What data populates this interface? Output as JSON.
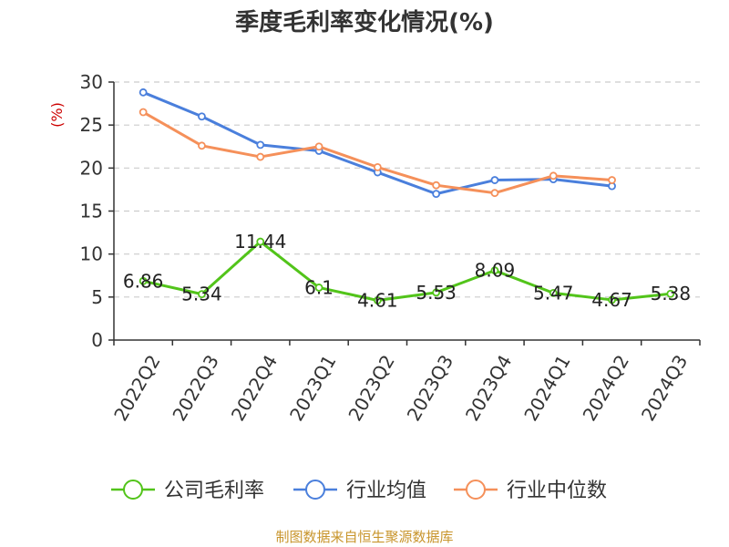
{
  "chart_data": {
    "type": "line",
    "title": "季度毛利率变化情况(%)",
    "ylabel": "(%)",
    "xlabel": "",
    "categories": [
      "2022Q2",
      "2022Q3",
      "2022Q4",
      "2023Q1",
      "2023Q2",
      "2023Q3",
      "2023Q4",
      "2024Q1",
      "2024Q2",
      "2024Q3"
    ],
    "ylim": [
      0,
      30
    ],
    "yticks": [
      0,
      5,
      10,
      15,
      20,
      25,
      30
    ],
    "grid": true,
    "legend_position": "bottom",
    "series": [
      {
        "name": "公司毛利率",
        "color": "#52c41a",
        "show_labels": true,
        "values": [
          6.86,
          5.34,
          11.44,
          6.1,
          4.61,
          5.53,
          8.09,
          5.47,
          4.67,
          5.38
        ]
      },
      {
        "name": "行业均值",
        "color": "#4a7fdc",
        "show_labels": false,
        "values": [
          28.8,
          26.0,
          22.7,
          22.0,
          19.5,
          17.0,
          18.6,
          18.7,
          17.9,
          null
        ]
      },
      {
        "name": "行业中位数",
        "color": "#f5905a",
        "show_labels": false,
        "values": [
          26.5,
          22.6,
          21.3,
          22.5,
          20.1,
          18.0,
          17.1,
          19.1,
          18.6,
          null
        ]
      }
    ]
  },
  "source": "制图数据来自恒生聚源数据库"
}
